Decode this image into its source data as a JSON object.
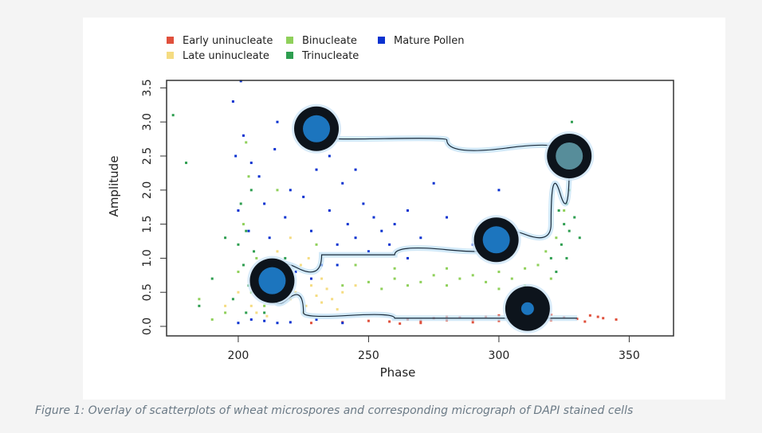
{
  "caption": "Figure 1: Overlay of scatterplots of wheat microspores and corresponding micrograph of DAPI stained cells",
  "chart_data": {
    "type": "scatter",
    "xlabel": "Phase",
    "ylabel": "Amplitude",
    "xlim": [
      172.5,
      367
    ],
    "ylim": [
      -0.14,
      3.61
    ],
    "xticks": [
      "200",
      "250",
      "300",
      "350"
    ],
    "yticks": [
      "0.0",
      "0.5",
      "1.0",
      "1.5",
      "2.0",
      "2.5",
      "3.0",
      "3.5"
    ],
    "grid": false,
    "legend_position": "top",
    "series": [
      {
        "name": "Early uninucleate",
        "color": "#e0503c",
        "points": [
          [
            228,
            0.05
          ],
          [
            240,
            0.06
          ],
          [
            250,
            0.08
          ],
          [
            258,
            0.07
          ],
          [
            265,
            0.1
          ],
          [
            270,
            0.08
          ],
          [
            275,
            0.12
          ],
          [
            280,
            0.09
          ],
          [
            285,
            0.13
          ],
          [
            290,
            0.1
          ],
          [
            295,
            0.14
          ],
          [
            300,
            0.08
          ],
          [
            305,
            0.12
          ],
          [
            310,
            0.1
          ],
          [
            315,
            0.15
          ],
          [
            320,
            0.09
          ],
          [
            325,
            0.13
          ],
          [
            330,
            0.11
          ],
          [
            335,
            0.16
          ],
          [
            340,
            0.12
          ],
          [
            345,
            0.1
          ],
          [
            300,
            0.16
          ],
          [
            310,
            0.06
          ],
          [
            320,
            0.17
          ],
          [
            290,
            0.06
          ],
          [
            333,
            0.07
          ],
          [
            338,
            0.14
          ],
          [
            280,
            0.14
          ],
          [
            270,
            0.05
          ],
          [
            262,
            0.04
          ]
        ]
      },
      {
        "name": "Late uninucleate",
        "color": "#f5dc82",
        "points": [
          [
            205,
            0.3
          ],
          [
            208,
            0.6
          ],
          [
            210,
            0.45
          ],
          [
            212,
            0.8
          ],
          [
            214,
            0.35
          ],
          [
            216,
            0.55
          ],
          [
            218,
            0.7
          ],
          [
            220,
            0.4
          ],
          [
            222,
            0.5
          ],
          [
            224,
            0.9
          ],
          [
            226,
            0.3
          ],
          [
            228,
            0.6
          ],
          [
            230,
            0.45
          ],
          [
            232,
            0.35
          ],
          [
            234,
            0.55
          ],
          [
            236,
            0.4
          ],
          [
            238,
            0.25
          ],
          [
            215,
            1.1
          ],
          [
            220,
            1.3
          ],
          [
            207,
            0.2
          ],
          [
            225,
            0.2
          ],
          [
            232,
            0.7
          ],
          [
            240,
            0.5
          ],
          [
            245,
            0.6
          ],
          [
            200,
            0.5
          ],
          [
            195,
            0.3
          ],
          [
            211,
            0.15
          ],
          [
            227,
            1.0
          ]
        ]
      },
      {
        "name": "Binucleate",
        "color": "#8fd05a",
        "points": [
          [
            195,
            0.2
          ],
          [
            200,
            0.8
          ],
          [
            202,
            1.5
          ],
          [
            204,
            2.2
          ],
          [
            205,
            0.5
          ],
          [
            207,
            1.0
          ],
          [
            210,
            0.3
          ],
          [
            240,
            0.6
          ],
          [
            250,
            0.65
          ],
          [
            255,
            0.55
          ],
          [
            260,
            0.7
          ],
          [
            265,
            0.6
          ],
          [
            270,
            0.65
          ],
          [
            275,
            0.75
          ],
          [
            280,
            0.6
          ],
          [
            285,
            0.7
          ],
          [
            290,
            0.75
          ],
          [
            295,
            0.65
          ],
          [
            300,
            0.8
          ],
          [
            305,
            0.7
          ],
          [
            310,
            0.85
          ],
          [
            315,
            0.9
          ],
          [
            318,
            1.1
          ],
          [
            322,
            1.3
          ],
          [
            325,
            1.7
          ],
          [
            327,
            2.0
          ],
          [
            328,
            2.4
          ],
          [
            329,
            2.8
          ],
          [
            260,
            0.85
          ],
          [
            280,
            0.85
          ],
          [
            245,
            0.9
          ],
          [
            230,
            1.2
          ],
          [
            300,
            0.55
          ],
          [
            310,
            0.6
          ],
          [
            320,
            0.7
          ],
          [
            190,
            0.1
          ],
          [
            185,
            0.4
          ],
          [
            215,
            2.0
          ],
          [
            203,
            2.7
          ]
        ]
      },
      {
        "name": "Trinucleate",
        "color": "#2e9e50",
        "points": [
          [
            198,
            0.4
          ],
          [
            200,
            1.2
          ],
          [
            201,
            1.8
          ],
          [
            202,
            0.9
          ],
          [
            203,
            1.4
          ],
          [
            204,
            0.6
          ],
          [
            205,
            2.0
          ],
          [
            206,
            1.1
          ],
          [
            203,
            0.2
          ],
          [
            190,
            0.7
          ],
          [
            185,
            0.3
          ],
          [
            180,
            2.4
          ],
          [
            175,
            3.1
          ],
          [
            195,
            1.3
          ],
          [
            322,
            0.8
          ],
          [
            324,
            1.2
          ],
          [
            325,
            1.5
          ],
          [
            326,
            1.8
          ],
          [
            327,
            1.4
          ],
          [
            328,
            2.2
          ],
          [
            329,
            1.6
          ],
          [
            330,
            2.6
          ],
          [
            326,
            1.0
          ],
          [
            323,
            1.7
          ],
          [
            328,
            3.0
          ],
          [
            331,
            1.3
          ],
          [
            320,
            1.0
          ],
          [
            218,
            1.0
          ],
          [
            210,
            0.2
          ]
        ]
      },
      {
        "name": "Mature Pollen",
        "color": "#0a32d0",
        "points": [
          [
            198,
            3.3
          ],
          [
            199,
            2.5
          ],
          [
            200,
            1.7
          ],
          [
            201,
            3.6
          ],
          [
            202,
            2.8
          ],
          [
            204,
            1.4
          ],
          [
            205,
            0.1
          ],
          [
            208,
            2.2
          ],
          [
            210,
            1.8
          ],
          [
            212,
            1.3
          ],
          [
            214,
            2.6
          ],
          [
            215,
            0.05
          ],
          [
            218,
            1.6
          ],
          [
            220,
            2.0
          ],
          [
            222,
            0.8
          ],
          [
            225,
            1.9
          ],
          [
            228,
            1.4
          ],
          [
            230,
            2.3
          ],
          [
            232,
            0.9
          ],
          [
            235,
            1.7
          ],
          [
            238,
            1.2
          ],
          [
            240,
            2.1
          ],
          [
            242,
            1.5
          ],
          [
            245,
            1.3
          ],
          [
            248,
            1.8
          ],
          [
            250,
            1.1
          ],
          [
            252,
            1.6
          ],
          [
            255,
            1.4
          ],
          [
            258,
            1.2
          ],
          [
            260,
            1.5
          ],
          [
            265,
            1.7
          ],
          [
            270,
            1.3
          ],
          [
            275,
            2.1
          ],
          [
            280,
            1.6
          ],
          [
            290,
            1.2
          ],
          [
            300,
            2.0
          ],
          [
            200,
            0.05
          ],
          [
            210,
            0.08
          ],
          [
            220,
            0.06
          ],
          [
            230,
            0.1
          ],
          [
            240,
            0.05
          ],
          [
            225,
            2.7
          ],
          [
            235,
            2.5
          ],
          [
            245,
            2.3
          ],
          [
            215,
            3.0
          ],
          [
            205,
            2.4
          ],
          [
            265,
            1.0
          ],
          [
            213,
            0.4
          ],
          [
            228,
            0.7
          ],
          [
            238,
            0.9
          ]
        ]
      }
    ],
    "micrographs": [
      [
        230,
        2.9
      ],
      [
        327,
        2.5
      ],
      [
        299,
        1.27
      ],
      [
        213,
        0.67
      ],
      [
        311,
        0.26
      ]
    ],
    "trajectory": [
      [
        [
          232,
          2.77
        ],
        [
          280,
          2.74
        ],
        [
          327,
          2.5
        ]
      ],
      [
        [
          327,
          2.4
        ],
        [
          320,
          1.5
        ],
        [
          300,
          1.2
        ],
        [
          260,
          1.05
        ],
        [
          232,
          1.05
        ],
        [
          213,
          0.67
        ]
      ],
      [
        [
          213,
          0.6
        ],
        [
          225,
          0.2
        ],
        [
          260,
          0.12
        ],
        [
          330,
          0.12
        ]
      ]
    ]
  }
}
